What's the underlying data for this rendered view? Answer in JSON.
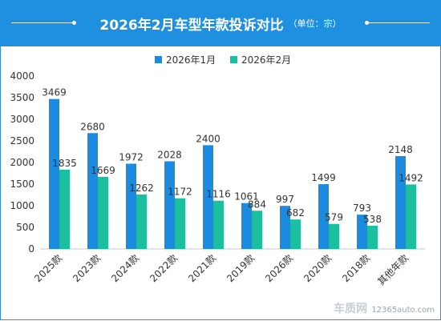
{
  "header": {
    "title": "2026年2月车型年款投诉对比",
    "subtitle": "（单位：宗）"
  },
  "watermark": {
    "brand": "车质网",
    "site": "12365auto.com"
  },
  "colors": {
    "header_bg": "#1f8fe0",
    "series_1": "#1b8be0",
    "series_2": "#1dbfa3",
    "axis_text": "#333333"
  },
  "chart_data": {
    "type": "bar",
    "categories": [
      "2025款",
      "2023款",
      "2024款",
      "2022款",
      "2021款",
      "2019款",
      "2026款",
      "2020款",
      "2018款",
      "其他年款"
    ],
    "series": [
      {
        "name": "2026年1月",
        "values": [
          3469,
          2680,
          1972,
          2028,
          2400,
          1061,
          997,
          1499,
          793,
          2148
        ]
      },
      {
        "name": "2026年2月",
        "values": [
          1835,
          1669,
          1262,
          1172,
          1116,
          884,
          682,
          579,
          538,
          1492
        ]
      }
    ],
    "ylim": [
      0,
      4000
    ],
    "yticks": [
      0,
      500,
      1000,
      1500,
      2000,
      2500,
      3000,
      3500,
      4000
    ],
    "grid": false,
    "legend": "top-center",
    "data_labels": true
  }
}
